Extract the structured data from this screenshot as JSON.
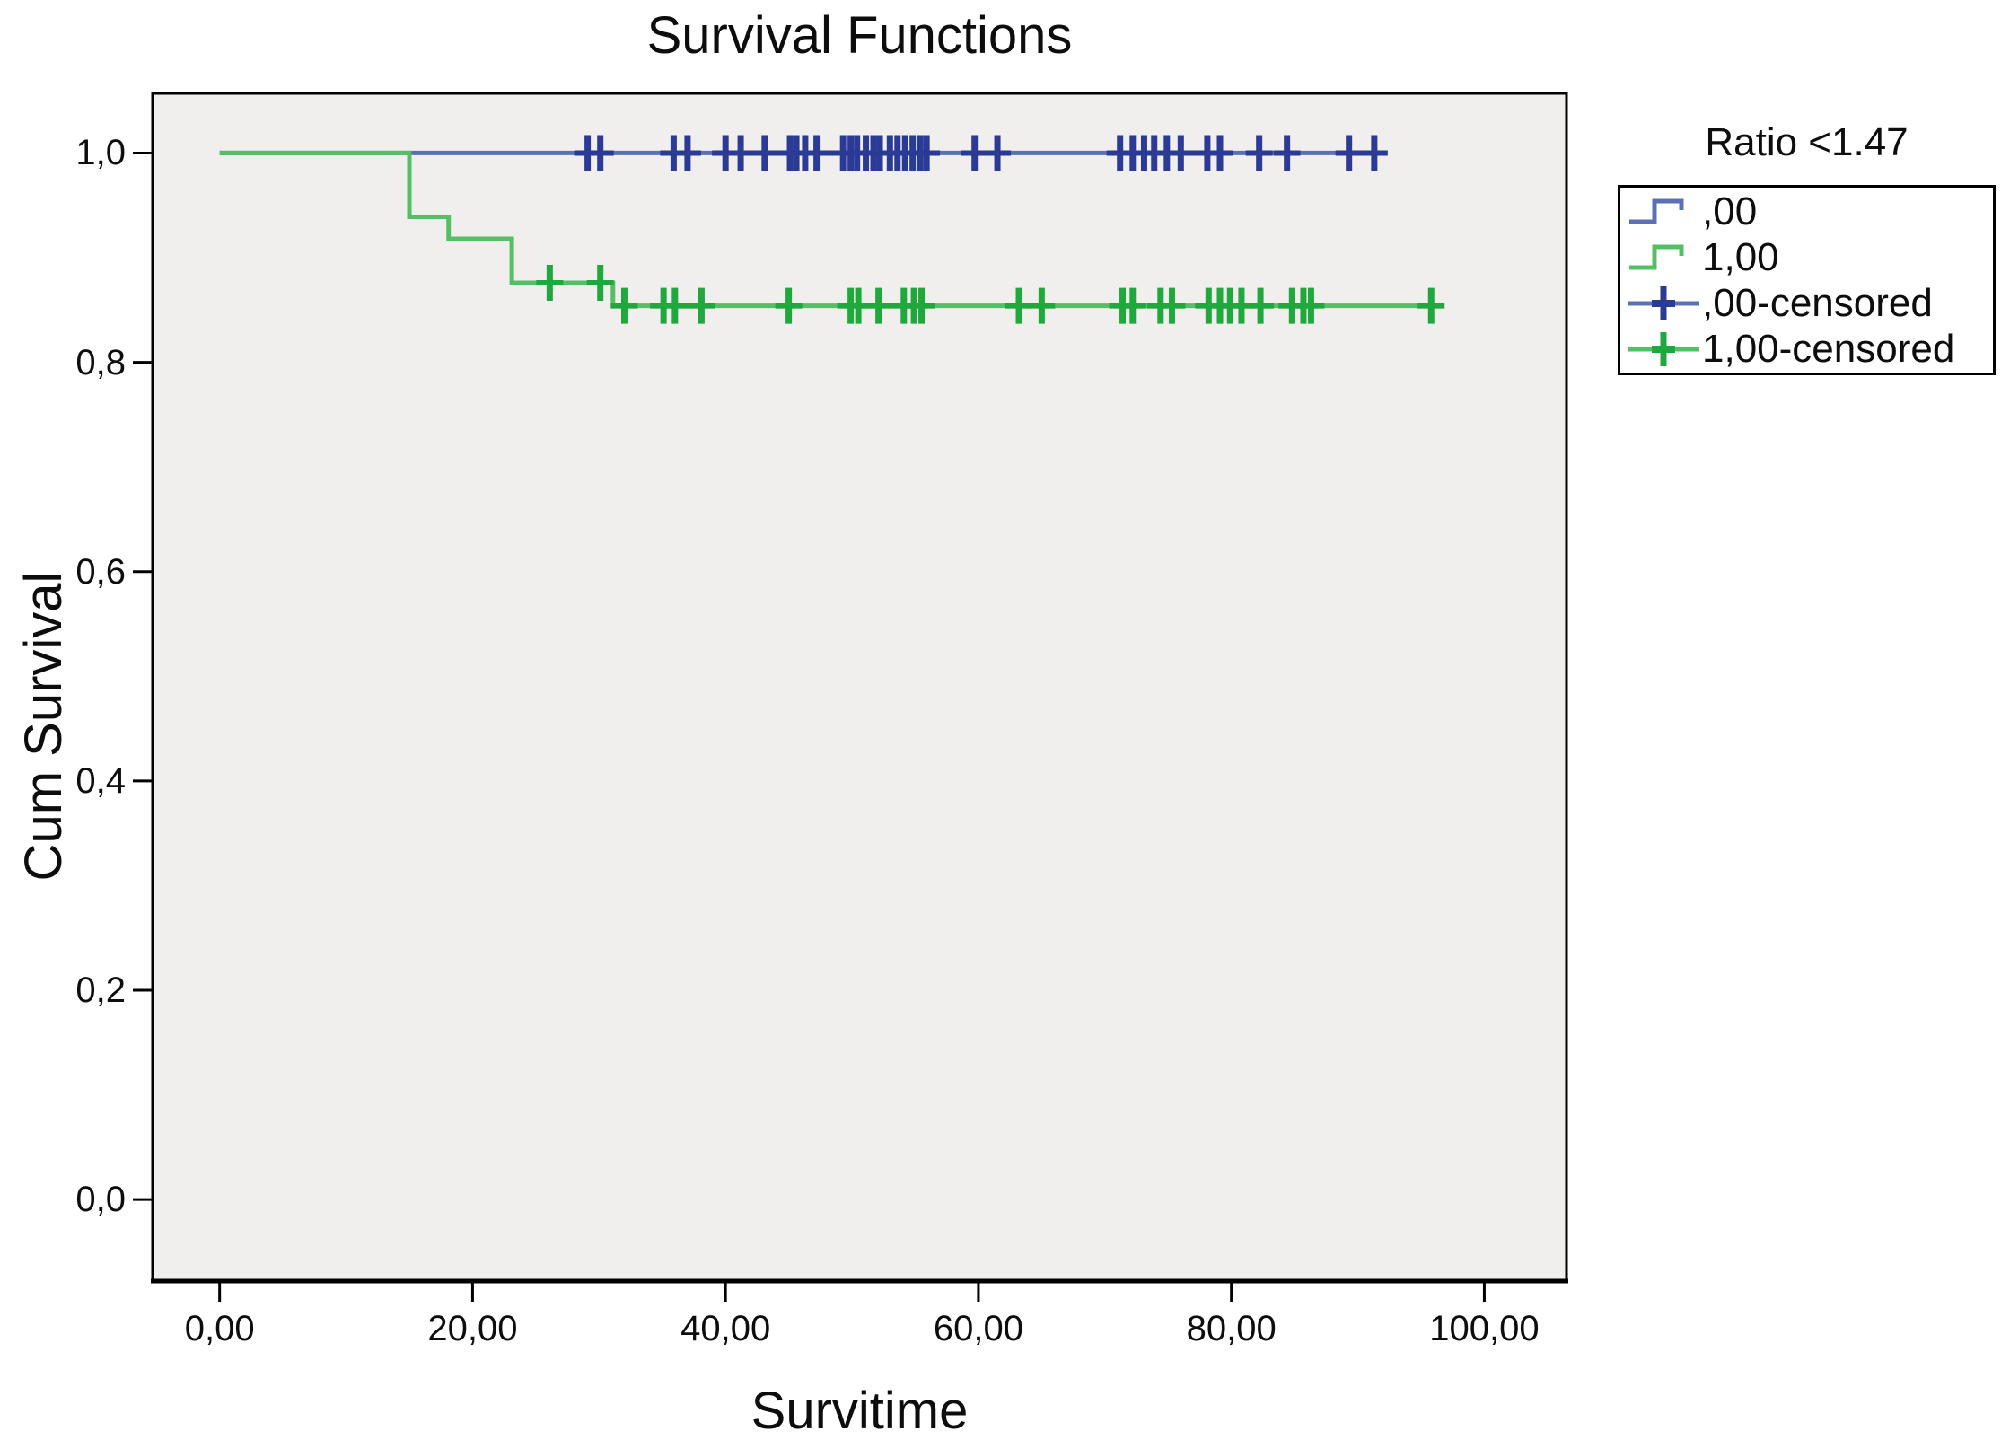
{
  "chart_data": {
    "type": "line",
    "chart_style": "kaplan-meier-step-survival",
    "title": "Survival Functions",
    "xlabel": "Survitime",
    "ylabel": "Cum Survival",
    "xlim": [
      -5.3,
      106.5
    ],
    "ylim": [
      -0.078,
      1.057
    ],
    "grid": false,
    "plot_background": "#f0efed",
    "frame_color": "#000000",
    "tick_color": "#000000",
    "x_ticks": [
      {
        "value": 0,
        "label": "0,00"
      },
      {
        "value": 20,
        "label": "20,00"
      },
      {
        "value": 40,
        "label": "40,00"
      },
      {
        "value": 60,
        "label": "60,00"
      },
      {
        "value": 80,
        "label": "80,00"
      },
      {
        "value": 100,
        "label": "100,00"
      }
    ],
    "y_ticks": [
      {
        "value": 1.0,
        "label": "1,0"
      },
      {
        "value": 0.8,
        "label": "0,8"
      },
      {
        "value": 0.6,
        "label": "0,6"
      },
      {
        "value": 0.4,
        "label": "0,4"
      },
      {
        "value": 0.2,
        "label": "0,2"
      },
      {
        "value": 0.0,
        "label": "0,0"
      }
    ],
    "legend": {
      "title": "Ratio <1.47",
      "position": "top-right-outside",
      "entries": [
        {
          "label": ",00",
          "type": "step",
          "line_color": "#5c70b7",
          "plus_color": "#5c70b7"
        },
        {
          "label": "1,00",
          "type": "step",
          "line_color": "#55bf66",
          "plus_color": "#55bf66"
        },
        {
          "label": ",00-censored",
          "type": "censor",
          "line_color": "#5c70b7",
          "plus_color": "#2b3a94"
        },
        {
          "label": "1,00-censored",
          "type": "censor",
          "line_color": "#55bf66",
          "plus_color": "#1fa83c"
        }
      ]
    },
    "series": [
      {
        "name": ",00",
        "line_color": "#5c70b7",
        "censor_color": "#2b3a94",
        "step_points": [
          [
            0,
            1.0
          ],
          [
            91.8,
            1.0
          ]
        ],
        "censored": [
          [
            29.1,
            1.0
          ],
          [
            30.1,
            1.0
          ],
          [
            35.9,
            1.0
          ],
          [
            37.0,
            1.0
          ],
          [
            40.0,
            1.0
          ],
          [
            41.2,
            1.0
          ],
          [
            43.1,
            1.0
          ],
          [
            45.1,
            1.0
          ],
          [
            45.6,
            1.0
          ],
          [
            46.3,
            1.0
          ],
          [
            47.2,
            1.0
          ],
          [
            49.3,
            1.0
          ],
          [
            49.9,
            1.0
          ],
          [
            50.4,
            1.0
          ],
          [
            51.1,
            1.0
          ],
          [
            51.7,
            1.0
          ],
          [
            52.2,
            1.0
          ],
          [
            53.0,
            1.0
          ],
          [
            53.6,
            1.0
          ],
          [
            54.2,
            1.0
          ],
          [
            54.8,
            1.0
          ],
          [
            55.4,
            1.0
          ],
          [
            55.9,
            1.0
          ],
          [
            59.7,
            1.0
          ],
          [
            61.5,
            1.0
          ],
          [
            71.2,
            1.0
          ],
          [
            72.2,
            1.0
          ],
          [
            73.1,
            1.0
          ],
          [
            73.9,
            1.0
          ],
          [
            74.9,
            1.0
          ],
          [
            76.0,
            1.0
          ],
          [
            78.1,
            1.0
          ],
          [
            79.1,
            1.0
          ],
          [
            82.2,
            1.0
          ],
          [
            84.4,
            1.0
          ],
          [
            89.3,
            1.0
          ],
          [
            91.3,
            1.0
          ]
        ]
      },
      {
        "name": "1,00",
        "line_color": "#55bf66",
        "censor_color": "#1fa83c",
        "step_points": [
          [
            0,
            1.0
          ],
          [
            15.0,
            1.0
          ],
          [
            15.0,
            0.939
          ],
          [
            18.1,
            0.939
          ],
          [
            18.1,
            0.918
          ],
          [
            23.1,
            0.918
          ],
          [
            23.1,
            0.876
          ],
          [
            31.1,
            0.876
          ],
          [
            31.1,
            0.854
          ],
          [
            96.5,
            0.854
          ]
        ],
        "censored": [
          [
            26.1,
            0.876
          ],
          [
            30.1,
            0.876
          ],
          [
            32.0,
            0.854
          ],
          [
            35.1,
            0.854
          ],
          [
            36.0,
            0.854
          ],
          [
            38.1,
            0.854
          ],
          [
            45.0,
            0.854
          ],
          [
            49.9,
            0.854
          ],
          [
            50.5,
            0.854
          ],
          [
            52.1,
            0.854
          ],
          [
            54.1,
            0.854
          ],
          [
            54.9,
            0.854
          ],
          [
            55.5,
            0.854
          ],
          [
            63.2,
            0.854
          ],
          [
            65.0,
            0.854
          ],
          [
            71.4,
            0.854
          ],
          [
            72.2,
            0.854
          ],
          [
            74.4,
            0.854
          ],
          [
            75.3,
            0.854
          ],
          [
            78.2,
            0.854
          ],
          [
            79.1,
            0.854
          ],
          [
            79.9,
            0.854
          ],
          [
            80.8,
            0.854
          ],
          [
            82.3,
            0.854
          ],
          [
            84.8,
            0.854
          ],
          [
            85.7,
            0.854
          ],
          [
            86.3,
            0.854
          ],
          [
            95.8,
            0.854
          ]
        ]
      }
    ]
  }
}
